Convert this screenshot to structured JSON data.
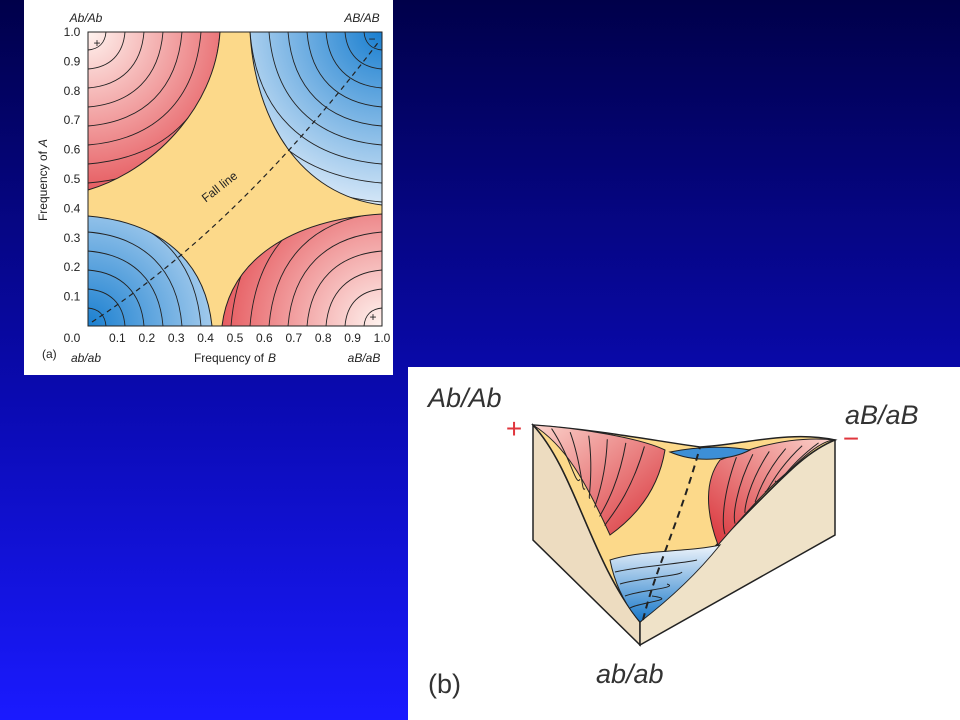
{
  "panel_a": {
    "label": "(a)",
    "corner_labels": {
      "top_left": "Ab/Ab",
      "top_right": "AB/AB",
      "bottom_left": "ab/ab",
      "bottom_right": "aB/aB"
    },
    "x_axis_label": {
      "prefix": "Frequency of",
      "variable": "B"
    },
    "y_axis_label": {
      "prefix": "Frequency of",
      "variable": "A"
    },
    "x_ticks": [
      "0.1",
      "0.2",
      "0.3",
      "0.4",
      "0.5",
      "0.6",
      "0.7",
      "0.8",
      "0.9",
      "1.0"
    ],
    "y_ticks": [
      "0.0",
      "0.1",
      "0.2",
      "0.3",
      "0.4",
      "0.5",
      "0.6",
      "0.7",
      "0.8",
      "0.9",
      "1.0"
    ],
    "annotation": "Fall line",
    "peak_markers": [
      "+",
      "+"
    ],
    "valley_marker": "−"
  },
  "panel_b": {
    "label": "(b)",
    "corner_labels": {
      "left": "Ab/Ab",
      "right": "aB/aB",
      "front": "ab/ab"
    },
    "peak_marker": "+",
    "valley_marker": "−"
  }
}
